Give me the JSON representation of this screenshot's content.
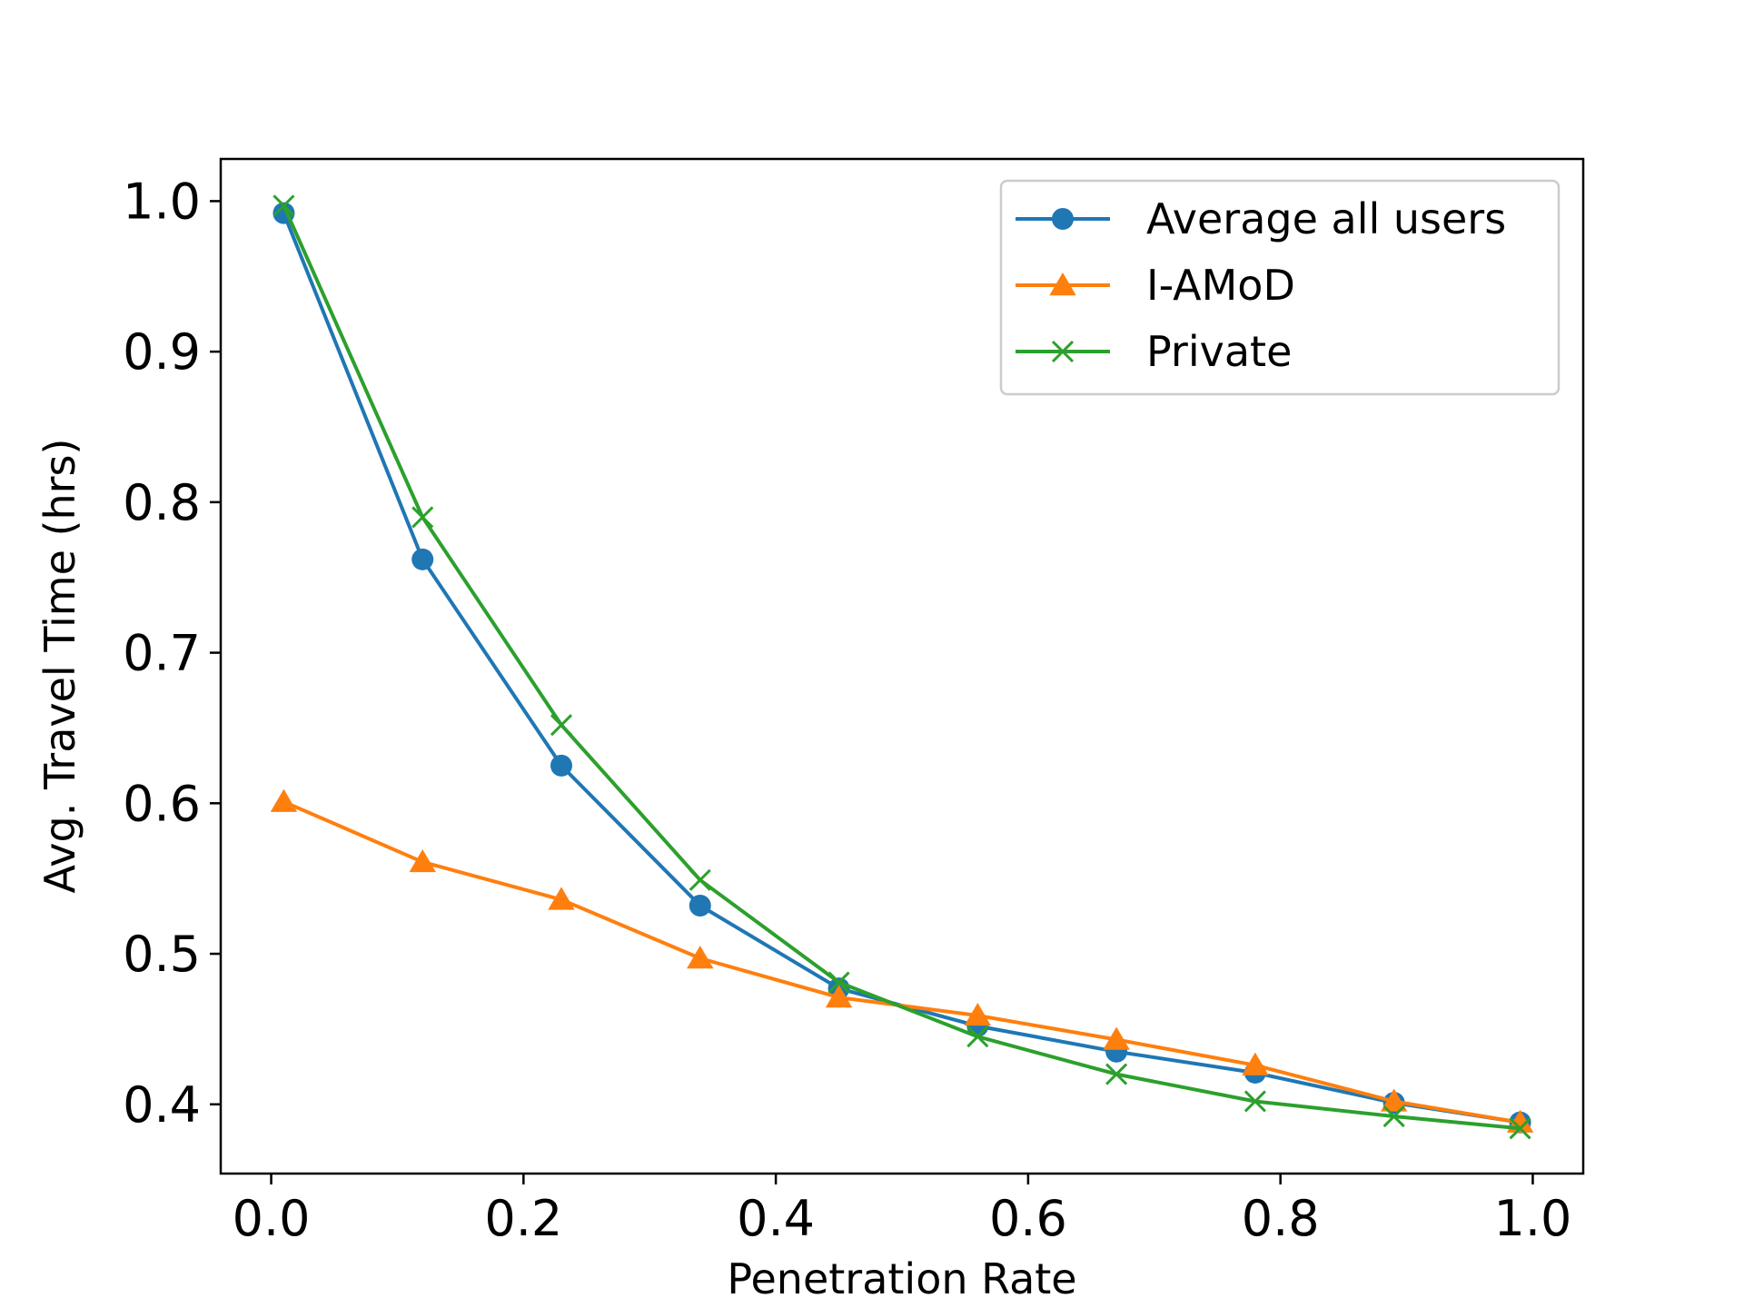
{
  "chart_data": {
    "type": "line",
    "title": "",
    "xlabel": "Penetration Rate",
    "ylabel": "Avg. Travel Time (hrs)",
    "xlim": [
      -0.04,
      1.04
    ],
    "ylim": [
      0.354,
      1.028
    ],
    "xticks": [
      "0.0",
      "0.2",
      "0.4",
      "0.6",
      "0.8",
      "1.0"
    ],
    "yticks": [
      "0.4",
      "0.5",
      "0.6",
      "0.7",
      "0.8",
      "0.9",
      "1.0"
    ],
    "grid": false,
    "legend_position": "upper-right",
    "x": [
      0.01,
      0.12,
      0.23,
      0.34,
      0.45,
      0.56,
      0.67,
      0.78,
      0.89,
      0.99
    ],
    "series": [
      {
        "name": "Average all users",
        "color": "#1f77b4",
        "marker": "circle",
        "values": [
          0.992,
          0.762,
          0.625,
          0.532,
          0.477,
          0.452,
          0.435,
          0.421,
          0.401,
          0.388
        ]
      },
      {
        "name": "I-AMoD",
        "color": "#ff7f0e",
        "marker": "triangle",
        "values": [
          0.601,
          0.561,
          0.536,
          0.497,
          0.471,
          0.459,
          0.443,
          0.426,
          0.402,
          0.388
        ]
      },
      {
        "name": "Private",
        "color": "#2ca02c",
        "marker": "x",
        "values": [
          0.997,
          0.79,
          0.652,
          0.549,
          0.481,
          0.445,
          0.42,
          0.402,
          0.392,
          0.384
        ]
      }
    ]
  }
}
